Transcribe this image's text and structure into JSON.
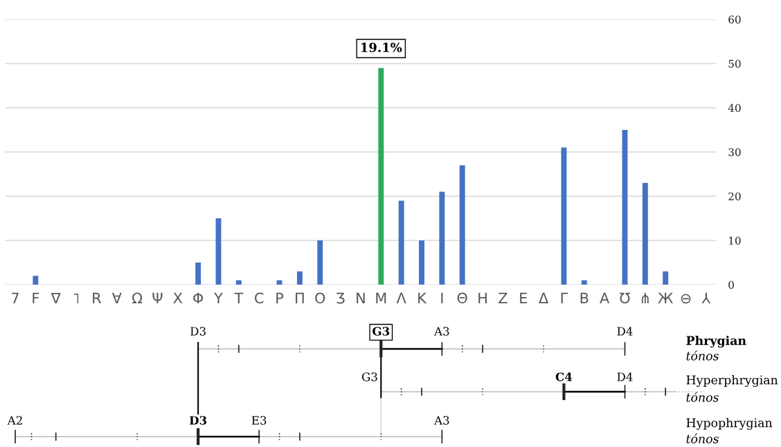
{
  "chart_data": {
    "type": "bar",
    "categories": [
      "7",
      "F",
      "∇",
      "˥",
      "R",
      "∀",
      "Ω",
      "Ψ",
      "X",
      "Φ",
      "Y",
      "T",
      "C",
      "P",
      "Π",
      "O",
      "Ʒ",
      "N",
      "M",
      "Λ",
      "K",
      "I",
      "Θ",
      "H",
      "Z",
      "E",
      "Δ",
      "Γ",
      "B",
      "A",
      "Ʊ",
      "⋔",
      "Ж",
      "⊖",
      "⅄"
    ],
    "values": [
      0,
      2,
      0,
      0,
      0,
      0,
      0,
      0,
      0,
      5,
      15,
      1,
      0,
      1,
      3,
      10,
      0,
      0,
      49,
      19,
      10,
      21,
      27,
      0,
      0,
      0,
      0,
      31,
      1,
      0,
      35,
      23,
      3,
      0,
      0
    ],
    "colors": [
      "#4472c4",
      "#4472c4",
      "#4472c4",
      "#4472c4",
      "#4472c4",
      "#4472c4",
      "#4472c4",
      "#4472c4",
      "#4472c4",
      "#4472c4",
      "#4472c4",
      "#4472c4",
      "#4472c4",
      "#4472c4",
      "#4472c4",
      "#4472c4",
      "#4472c4",
      "#4472c4",
      "#2eaa5e",
      "#4472c4",
      "#4472c4",
      "#4472c4",
      "#4472c4",
      "#4472c4",
      "#4472c4",
      "#4472c4",
      "#4472c4",
      "#4472c4",
      "#4472c4",
      "#4472c4",
      "#4472c4",
      "#4472c4",
      "#4472c4",
      "#4472c4",
      "#4472c4"
    ],
    "ylim": [
      0,
      60
    ],
    "yticks": [
      0,
      10,
      20,
      30,
      40,
      50,
      60
    ],
    "grid": "y",
    "annotations": [
      {
        "text": "19.1%",
        "x": "M",
        "y": 49
      },
      "D3",
      "G3",
      "A3",
      "D4",
      "Phrygian",
      "tónos",
      "G3",
      "C4",
      "D4",
      "Hyperphrygian",
      "tónos",
      "A2",
      "D3",
      "E3",
      "A3",
      "Hypophrygian",
      "tónos"
    ]
  }
}
